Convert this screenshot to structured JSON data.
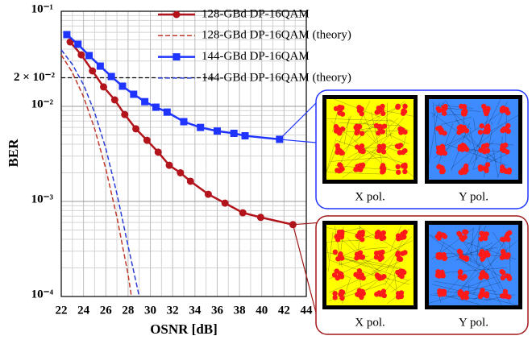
{
  "chart_data": {
    "type": "line",
    "x_label": "OSNR [dB]",
    "y_label": "BER",
    "xlim": [
      22,
      44
    ],
    "xticks": [
      22,
      24,
      26,
      28,
      30,
      32,
      34,
      36,
      38,
      40,
      42,
      44
    ],
    "ylim": [
      0.0001,
      0.1
    ],
    "log_y": true,
    "yticks": [
      {
        "value": 0.0001,
        "label": "10⁻⁴"
      },
      {
        "value": 0.001,
        "label": "10⁻³"
      },
      {
        "value": 0.01,
        "label": "10⁻²"
      },
      {
        "value": 0.1,
        "label": "10⁻¹"
      }
    ],
    "grid": true,
    "minor_grid": true,
    "legend": "top",
    "threshold": {
      "value": 0.02,
      "label": "2 × 10⁻²"
    },
    "series": [
      {
        "name": "128-GBd DP-16QAM",
        "color": "#b3141b",
        "marker": "circle",
        "dashed": false,
        "x": [
          22.8,
          23.8,
          24.8,
          25.8,
          26.8,
          27.7,
          28.7,
          29.7,
          30.7,
          31.7,
          32.7,
          33.6,
          35.2,
          36.7,
          38.3,
          39.9,
          42.8
        ],
        "values": [
          0.0476,
          0.0348,
          0.0236,
          0.016,
          0.0117,
          0.0082,
          0.0058,
          0.0044,
          0.0033,
          0.0024,
          0.002,
          0.00163,
          0.00119,
          0.00096,
          0.00076,
          0.00068,
          0.00057
        ]
      },
      {
        "name": "128-GBd DP-16QAM (theory)",
        "color": "#c0392b",
        "marker": null,
        "dashed": true,
        "x": [
          22,
          23,
          24,
          25,
          26,
          27,
          28,
          28.3
        ],
        "values": [
          0.0348,
          0.0227,
          0.0126,
          0.0058,
          0.0022,
          0.00068,
          0.00017,
          0.0001
        ]
      },
      {
        "name": "144-GBd DP-16QAM",
        "color": "#1f35ff",
        "marker": "square",
        "dashed": false,
        "x": [
          22.5,
          23.5,
          24.5,
          25.5,
          26.5,
          27.5,
          28.5,
          29.5,
          30.5,
          31.5,
          33,
          34.5,
          36,
          37.5,
          38.5,
          41.6
        ],
        "values": [
          0.0568,
          0.045,
          0.0342,
          0.0265,
          0.0206,
          0.0163,
          0.0134,
          0.0112,
          0.0098,
          0.0087,
          0.0069,
          0.006,
          0.0055,
          0.0052,
          0.0049,
          0.0045
        ]
      },
      {
        "name": "144-GBd DP-16QAM (theory)",
        "color": "#2a3cd6",
        "marker": null,
        "dashed": true,
        "x": [
          22,
          23,
          24,
          25,
          26,
          27,
          28,
          29
        ],
        "values": [
          0.0393,
          0.0276,
          0.0169,
          0.0086,
          0.0036,
          0.0012,
          0.00034,
          0.0001
        ]
      }
    ],
    "insets": [
      {
        "labels": [
          "X pol.",
          "Y pol."
        ]
      },
      {
        "labels": [
          "X pol.",
          "Y pol."
        ]
      }
    ]
  }
}
